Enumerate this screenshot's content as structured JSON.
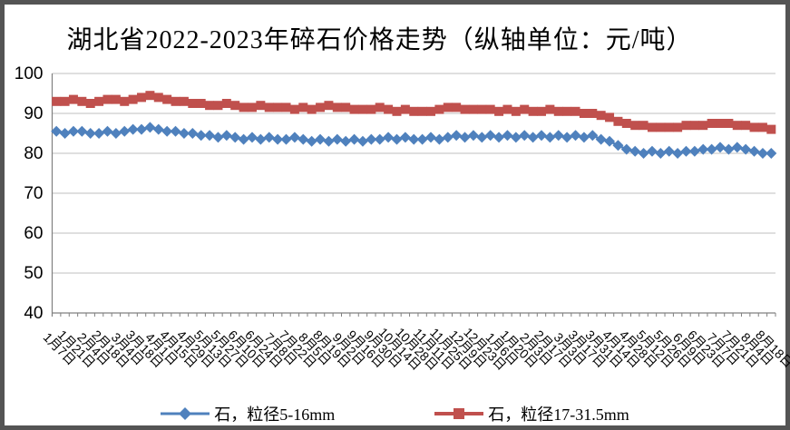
{
  "frame": {
    "border_color": "#545454",
    "background": "#ffffff"
  },
  "title": "湖北省2022-2023年碎石价格走势（纵轴单位：元/吨）",
  "chart_data": {
    "type": "line",
    "title": "湖北省2022-2023年碎石价格走势（纵轴单位：元/吨）",
    "y_axis": {
      "min": 40,
      "max": 100,
      "tick_step": 10,
      "tick_labels": [
        100,
        90,
        80,
        70,
        60,
        50,
        40
      ],
      "unit": "元/吨"
    },
    "x_axis": {
      "label_interval_points": 2,
      "labels": [
        "1月7日",
        "1月21日",
        "2月4日",
        "2月18日",
        "3月4日",
        "3月18日",
        "4月1日",
        "4月15日",
        "4月29日",
        "5月13日",
        "5月27日",
        "6月10日",
        "6月24日",
        "7月8日",
        "7月22日",
        "8月5日",
        "8月19日",
        "9月2日",
        "9月16日",
        "9月30日",
        "10月14日",
        "10月28日",
        "11月11日",
        "11月25日",
        "12月9日",
        "12月23日",
        "1月6日",
        "1月20日",
        "2月3日",
        "2月17日",
        "3月3日",
        "3月17日",
        "3月31日",
        "4月14日",
        "4月28日",
        "5月12日",
        "5月26日",
        "6月9日",
        "6月23日",
        "7月7日",
        "7月21日",
        "8月4日",
        "8月18日"
      ]
    },
    "grid": true,
    "legend_position": "bottom",
    "colors": {
      "gridline": "#bfbfbf",
      "axis": "#808080",
      "text": "#000000"
    },
    "series": [
      {
        "name": "石，粒径5-16mm",
        "color": "#4F81BD",
        "marker": "diamond",
        "values": [
          85.5,
          85,
          85.5,
          85.5,
          85,
          85,
          85.5,
          85,
          85.5,
          86,
          86,
          86.5,
          86,
          85.5,
          85.5,
          85,
          85,
          84.5,
          84.5,
          84,
          84.5,
          84,
          83.5,
          84,
          83.5,
          84,
          83.5,
          83.5,
          84,
          83.5,
          83,
          83.5,
          83,
          83.5,
          83,
          83.5,
          83,
          83.5,
          83.5,
          84,
          83.5,
          84,
          83.5,
          83.5,
          84,
          83.5,
          84,
          84.5,
          84,
          84.5,
          84,
          84.5,
          84,
          84.5,
          84,
          84.5,
          84,
          84.5,
          84,
          84.5,
          84,
          84.5,
          84,
          84.5,
          83.5,
          83,
          82,
          81,
          80.5,
          80,
          80.5,
          80,
          80.5,
          80,
          80.5,
          80.5,
          81,
          81,
          81.5,
          81,
          81.5,
          81,
          80.5,
          80,
          80
        ]
      },
      {
        "name": "石，粒径17-31.5mm",
        "color": "#C0504D",
        "marker": "square",
        "values": [
          93,
          93,
          93.5,
          93,
          92.5,
          93,
          93.5,
          93.5,
          93,
          93.5,
          94,
          94.5,
          94,
          93.5,
          93,
          93,
          92.5,
          92.5,
          92,
          92,
          92.5,
          92,
          91.5,
          91.5,
          92,
          91.5,
          91.5,
          91.5,
          91,
          91.5,
          91,
          91.5,
          92,
          91.5,
          91.5,
          91,
          91,
          91,
          91.5,
          91,
          90.5,
          91,
          90.5,
          90.5,
          90.5,
          91,
          91.5,
          91.5,
          91,
          91,
          91,
          91,
          90.5,
          91,
          90.5,
          91,
          90.5,
          90.5,
          91,
          90.5,
          90.5,
          90.5,
          90,
          90,
          89.5,
          89,
          88,
          87.5,
          87,
          87,
          86.5,
          86.5,
          86.5,
          86.5,
          87,
          87,
          87,
          87.5,
          87.5,
          87.5,
          87,
          87,
          86.5,
          86.5,
          86
        ]
      }
    ]
  }
}
